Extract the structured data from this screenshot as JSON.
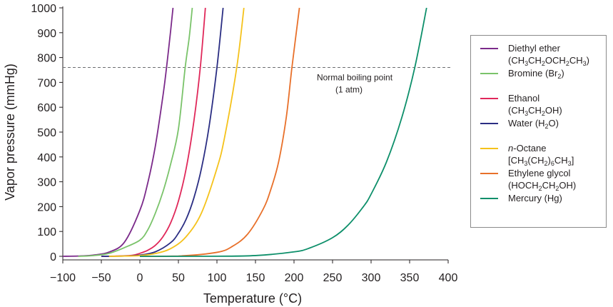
{
  "chart_data": {
    "type": "line",
    "title": "",
    "xlabel": "Temperature (°C)",
    "ylabel": "Vapor pressure (mmHg)",
    "xlim": [
      -100,
      400
    ],
    "ylim": [
      0,
      1000
    ],
    "xticks": [
      -100,
      -50,
      0,
      50,
      100,
      150,
      200,
      250,
      300,
      350,
      400
    ],
    "xtick_labels": [
      "−100",
      "−50",
      "0",
      "50",
      "100",
      "150",
      "200",
      "250",
      "300",
      "350",
      "400"
    ],
    "yticks": [
      0,
      100,
      200,
      300,
      400,
      500,
      600,
      700,
      800,
      900,
      1000
    ],
    "grid": false,
    "legend_position": "right",
    "reference_line": {
      "y": 760,
      "label_line1": "Normal boiling point",
      "label_line2": "(1 atm)"
    },
    "series": [
      {
        "name": "Diethyl ether",
        "formula": [
          {
            "t": "(CH"
          },
          {
            "t": "3",
            "sub": true
          },
          {
            "t": "CH"
          },
          {
            "t": "2",
            "sub": true
          },
          {
            "t": "OCH"
          },
          {
            "t": "2",
            "sub": true
          },
          {
            "t": "CH"
          },
          {
            "t": "3",
            "sub": true
          },
          {
            "t": ")"
          }
        ],
        "color": "#7b2a8a",
        "x": [
          -100,
          -80,
          -60,
          -40,
          -20,
          0,
          10,
          20,
          30,
          34.6,
          40,
          43
        ],
        "y": [
          0,
          1,
          5,
          17,
          57,
          185,
          292,
          442,
          647,
          760,
          910,
          1000
        ]
      },
      {
        "name": "Bromine",
        "formula": [
          {
            "t": "(Br"
          },
          {
            "t": "2",
            "sub": true
          },
          {
            "t": ")"
          }
        ],
        "color": "#7ac36a",
        "x": [
          -80,
          -60,
          -40,
          -20,
          0,
          10,
          20,
          30,
          40,
          50,
          58.8,
          64,
          68
        ],
        "y": [
          0,
          3,
          12,
          35,
          65,
          105,
          173,
          260,
          372,
          512,
          760,
          880,
          1000
        ]
      },
      {
        "name": "Ethanol",
        "formula": [
          {
            "t": "(CH"
          },
          {
            "t": "3",
            "sub": true
          },
          {
            "t": "CH"
          },
          {
            "t": "2",
            "sub": true
          },
          {
            "t": "OH)"
          }
        ],
        "color": "#e0285a",
        "x": [
          -50,
          -30,
          -10,
          0,
          10,
          20,
          30,
          40,
          50,
          60,
          70,
          78.4,
          85
        ],
        "y": [
          0,
          1,
          4,
          12,
          24,
          44,
          79,
          135,
          222,
          352,
          542,
          760,
          1000
        ]
      },
      {
        "name": "Water",
        "formula": [
          {
            "t": "(H"
          },
          {
            "t": "2",
            "sub": true
          },
          {
            "t": "O)"
          }
        ],
        "color": "#2b2e83",
        "x": [
          -50,
          -20,
          0,
          20,
          40,
          50,
          60,
          70,
          80,
          90,
          100,
          108
        ],
        "y": [
          0,
          1,
          5,
          18,
          55,
          93,
          149,
          234,
          355,
          526,
          760,
          1000
        ]
      },
      {
        "name": "n-Octane",
        "formula": [
          {
            "t": "[CH"
          },
          {
            "t": "3",
            "sub": true
          },
          {
            "t": "(CH"
          },
          {
            "t": "2",
            "sub": true
          },
          {
            "t": ")"
          },
          {
            "t": "6",
            "sub": true
          },
          {
            "t": "CH"
          },
          {
            "t": "3",
            "sub": true
          },
          {
            "t": "]"
          }
        ],
        "color": "#f5c21b",
        "x": [
          -40,
          -20,
          0,
          20,
          40,
          60,
          80,
          100,
          110,
          125.7,
          135
        ],
        "y": [
          0,
          1,
          3,
          11,
          31,
          79,
          175,
          354,
          480,
          760,
          1000
        ]
      },
      {
        "name": "Ethylene glycol",
        "formula": [
          {
            "t": "(HOCH"
          },
          {
            "t": "2",
            "sub": true
          },
          {
            "t": "CH"
          },
          {
            "t": "2",
            "sub": true
          },
          {
            "t": "OH)"
          }
        ],
        "color": "#e8702a",
        "x": [
          0,
          50,
          100,
          120,
          140,
          160,
          170,
          180,
          190,
          197.3,
          207
        ],
        "y": [
          0,
          1,
          16,
          40,
          90,
          190,
          270,
          380,
          560,
          760,
          1000
        ]
      },
      {
        "name": "Mercury",
        "formula": [
          {
            "t": "(Hg)"
          }
        ],
        "color": "#0d8f6a",
        "x": [
          0,
          100,
          150,
          200,
          220,
          250,
          270,
          290,
          300,
          320,
          340,
          356.7,
          372
        ],
        "y": [
          0,
          0.3,
          3,
          18,
          33,
          75,
          125,
          200,
          250,
          380,
          560,
          760,
          1000
        ]
      }
    ]
  }
}
